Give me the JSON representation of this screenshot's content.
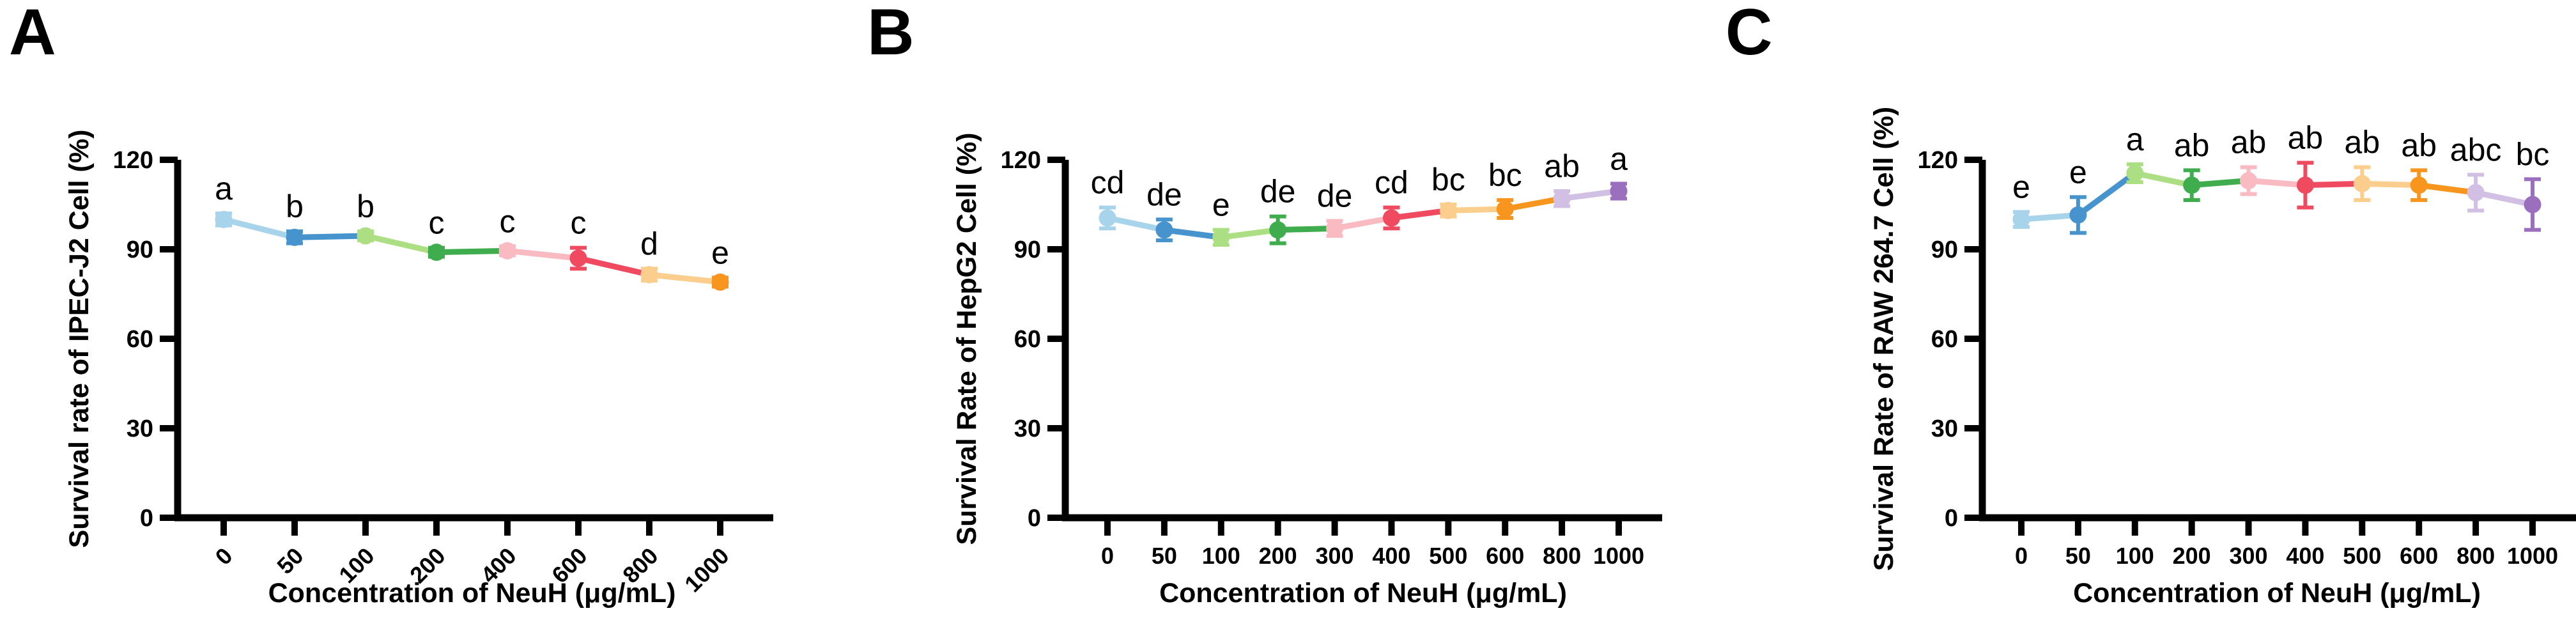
{
  "figure_title": "",
  "axis_color": "#000000",
  "background_color": "#ffffff",
  "chart_data": [
    {
      "type": "line",
      "panel_label": "A",
      "ylabel": "Survival rate of IPEC-J2 Cell (%)",
      "xlabel": "Concentration of NeuH (μg/mL)",
      "categories": [
        "0",
        "50",
        "100",
        "200",
        "400",
        "600",
        "800",
        "1000"
      ],
      "values": [
        100,
        94,
        94.5,
        89,
        89.5,
        87,
        81.5,
        79
      ],
      "errors": [
        2,
        2,
        1.5,
        1.5,
        1.5,
        3.5,
        2,
        1.5
      ],
      "sig_letters": [
        "a",
        "b",
        "b",
        "c",
        "c",
        "c",
        "d",
        "e"
      ],
      "point_colors": [
        "#A8D4EB",
        "#4793CE",
        "#ACDF84",
        "#3FAD4D",
        "#F9BAC1",
        "#EF4A60",
        "#FBCE8D",
        "#F8951F"
      ],
      "ylim": [
        0,
        120
      ],
      "yticks": [
        0,
        30,
        60,
        90,
        120
      ],
      "x_tick_rotation": 45,
      "grid": false,
      "legend": "none"
    },
    {
      "type": "line",
      "panel_label": "B",
      "ylabel": "Survival Rate of HepG2 Cell (%)",
      "xlabel": "Concentration of NeuH (μg/mL)",
      "categories": [
        "0",
        "50",
        "100",
        "200",
        "300",
        "400",
        "500",
        "600",
        "800",
        "1000"
      ],
      "values": [
        100.5,
        96.5,
        94,
        96.5,
        97,
        100.5,
        103,
        103.5,
        107,
        109.5
      ],
      "errors": [
        3.5,
        3.5,
        2.5,
        4.5,
        2.5,
        3.5,
        2,
        3,
        2.5,
        2.5
      ],
      "sig_letters": [
        "cd",
        "de",
        "e",
        "de",
        "de",
        "cd",
        "bc",
        "bc",
        "ab",
        "a"
      ],
      "point_colors": [
        "#A8D4EB",
        "#4793CE",
        "#ACDF84",
        "#3FAD4D",
        "#F9BAC1",
        "#EF4A60",
        "#FBCE8D",
        "#F8951F",
        "#D2BFE4",
        "#9A6FBE"
      ],
      "ylim": [
        0,
        120
      ],
      "yticks": [
        0,
        30,
        60,
        90,
        120
      ],
      "x_tick_rotation": 0,
      "grid": false,
      "legend": "none"
    },
    {
      "type": "line",
      "panel_label": "C",
      "ylabel": "Survival Rate of  RAW 264.7 Cell (%)",
      "xlabel": "Concentration of NeuH (μg/mL)",
      "categories": [
        "0",
        "50",
        "100",
        "200",
        "300",
        "400",
        "500",
        "600",
        "800",
        "1000"
      ],
      "values": [
        100,
        101.5,
        115.5,
        111.5,
        113,
        111.5,
        112,
        111.5,
        109,
        105
      ],
      "errors": [
        2.5,
        6,
        3,
        5,
        4.5,
        7.5,
        5.5,
        5,
        6,
        8.5
      ],
      "sig_letters": [
        "e",
        "e",
        "a",
        "ab",
        "ab",
        "ab",
        "ab",
        "ab",
        "abc",
        "bc"
      ],
      "point_colors": [
        "#A8D4EB",
        "#4793CE",
        "#ACDF84",
        "#3FAD4D",
        "#F9BAC1",
        "#EF4A60",
        "#FBCE8D",
        "#F8951F",
        "#D2BFE4",
        "#9A6FBE"
      ],
      "ylim": [
        0,
        120
      ],
      "yticks": [
        0,
        30,
        60,
        90,
        120
      ],
      "x_tick_rotation": 0,
      "grid": false,
      "legend": "none"
    }
  ]
}
